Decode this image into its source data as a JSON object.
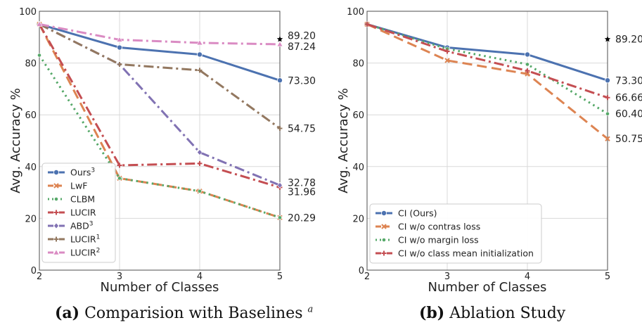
{
  "captions": {
    "a": {
      "label": "(a)",
      "text": "Comparision with Baselines",
      "sup": "a"
    },
    "b": {
      "label": "(b)",
      "text": "Ablation Study"
    }
  },
  "chart_data": [
    {
      "type": "line",
      "x": [
        2,
        3,
        4,
        5
      ],
      "xlabel": "Number of Classes",
      "ylabel": "Avg. Accuracy %",
      "ylim": [
        0,
        100
      ],
      "yticks": [
        0,
        20,
        40,
        60,
        80,
        100
      ],
      "xticks": [
        2,
        3,
        4,
        5
      ],
      "grid": true,
      "legend": "lower-left",
      "series": [
        {
          "name": "Ours",
          "sup": "3",
          "color": "#4c72b0",
          "dash": "solid",
          "marker": "circle",
          "values": [
            95,
            86,
            83.3,
            73.3
          ],
          "end_label": "73.30"
        },
        {
          "name": "LwF",
          "sup": "",
          "color": "#dd8452",
          "dash": "dashed",
          "marker": "x",
          "values": [
            95,
            35.5,
            30.5,
            20.3
          ],
          "end_label": ""
        },
        {
          "name": "CLBM",
          "sup": "",
          "color": "#55a868",
          "dash": "dotted",
          "marker": "dot",
          "values": [
            83,
            35.5,
            30.5,
            20.29
          ],
          "end_label": "20.29"
        },
        {
          "name": "LUCIR",
          "sup": "",
          "color": "#c44e52",
          "dash": "dashdot",
          "marker": "plus",
          "values": [
            95,
            40.5,
            41.2,
            31.96
          ],
          "end_label": "31.96"
        },
        {
          "name": "ABD",
          "sup": "3",
          "color": "#8172b3",
          "dash": "dashdot",
          "marker": "diamond",
          "values": [
            95,
            79.5,
            45.5,
            32.78
          ],
          "end_label": "32.78"
        },
        {
          "name": "LUCIR",
          "sup": "1",
          "color": "#937860",
          "dash": "dashdot",
          "marker": "plus",
          "values": [
            95,
            79.5,
            77.2,
            54.75
          ],
          "end_label": "54.75"
        },
        {
          "name": "LUCIR",
          "sup": "2",
          "color": "#da8bc3",
          "dash": "dashdot",
          "marker": "triangle",
          "values": [
            95,
            89,
            87.8,
            87.24
          ],
          "end_label": "87.24"
        }
      ],
      "star": {
        "x": 5,
        "y": 89.2,
        "label": "89.20"
      }
    },
    {
      "type": "line",
      "x": [
        2,
        3,
        4,
        5
      ],
      "xlabel": "Number of Classes",
      "ylabel": "Avg. Accuracy %",
      "ylim": [
        0,
        100
      ],
      "yticks": [
        0,
        20,
        40,
        60,
        80,
        100
      ],
      "xticks": [
        2,
        3,
        4,
        5
      ],
      "grid": true,
      "legend": "lower-left",
      "series": [
        {
          "name": "CI (Ours)",
          "sup": "",
          "color": "#4c72b0",
          "dash": "solid",
          "marker": "circle",
          "values": [
            95,
            86,
            83.3,
            73.3
          ],
          "end_label": "73.30"
        },
        {
          "name": "CI w/o contras loss",
          "sup": "",
          "color": "#dd8452",
          "dash": "dashed",
          "marker": "x",
          "values": [
            95,
            81,
            75.8,
            50.75
          ],
          "end_label": "50.75"
        },
        {
          "name": "CI w/o margin loss",
          "sup": "",
          "color": "#55a868",
          "dash": "dotted",
          "marker": "dot",
          "values": [
            95,
            85.5,
            79.5,
            60.4
          ],
          "end_label": "60.40"
        },
        {
          "name": "CI w/o class mean initialization",
          "sup": "",
          "color": "#c44e52",
          "dash": "dashdot",
          "marker": "plus",
          "values": [
            95,
            84.5,
            77,
            66.66
          ],
          "end_label": "66.66"
        }
      ],
      "star": {
        "x": 5,
        "y": 89.2,
        "label": "89.20"
      }
    }
  ]
}
